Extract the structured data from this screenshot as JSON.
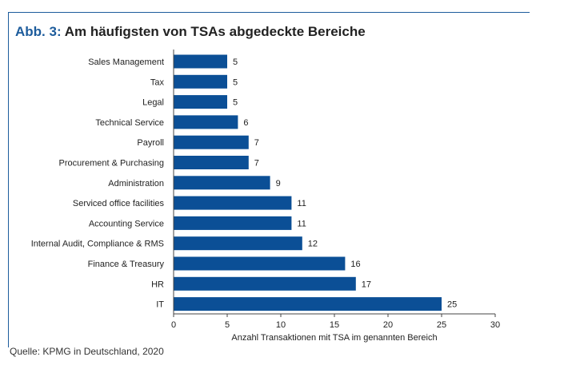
{
  "figure": {
    "title_prefix": "Abb. 3:",
    "title_text": "Am häufigsten von TSAs abgedeckte Bereiche",
    "source": "Quelle: KPMG in Deutschland, 2020"
  },
  "colors": {
    "bar": "#0b4f96",
    "frame": "#1d5c9c",
    "title_prefix": "#1d5c9c"
  },
  "chart_data": {
    "type": "bar",
    "orientation": "horizontal",
    "categories": [
      "Sales Management",
      "Tax",
      "Legal",
      "Technical Service",
      "Payroll",
      "Procurement & Purchasing",
      "Administration",
      "Serviced office facilities",
      "Accounting Service",
      "Internal Audit, Compliance & RMS",
      "Finance & Treasury",
      "HR",
      "IT"
    ],
    "values": [
      5,
      5,
      5,
      6,
      7,
      7,
      9,
      11,
      11,
      12,
      16,
      17,
      25
    ],
    "xlabel": "Anzahl Transaktionen mit TSA im genannten Bereich",
    "ylabel": "",
    "xlim": [
      0,
      30
    ],
    "xticks": [
      0,
      5,
      10,
      15,
      20,
      25,
      30
    ],
    "grid": false,
    "data_labels": true
  }
}
